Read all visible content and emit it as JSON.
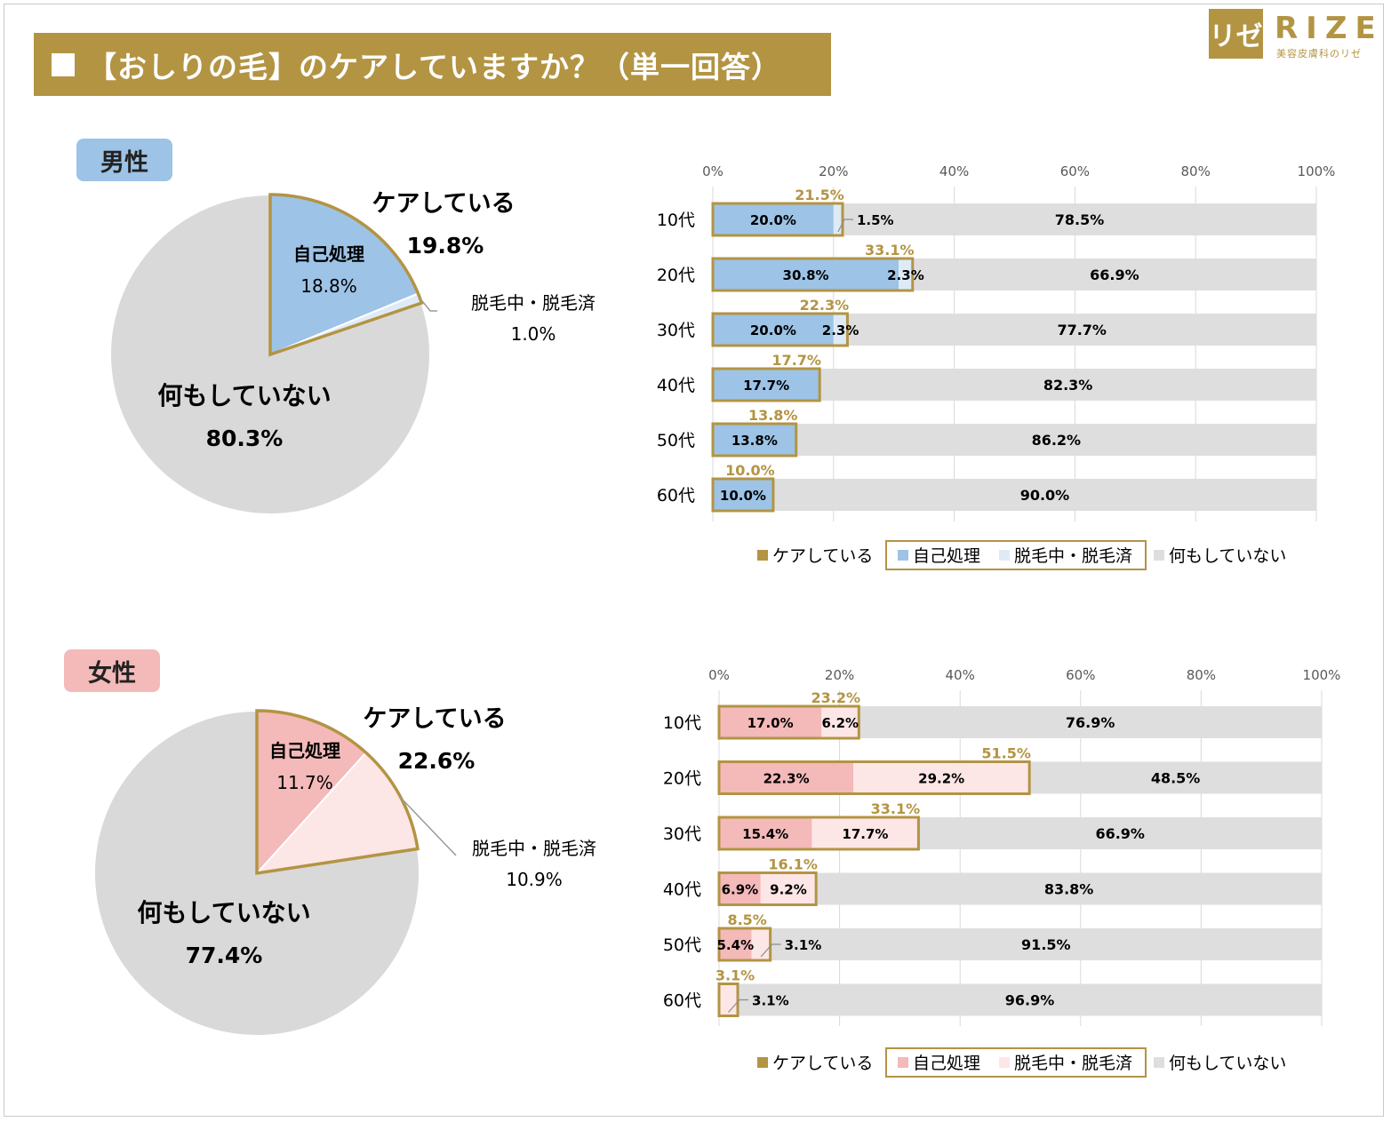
{
  "title": "【おしりの毛】のケアしていますか？（単一回答）",
  "logo": {
    "mark": "リゼ",
    "word": "RIZE",
    "sub": "美容皮膚科のリゼ"
  },
  "colors": {
    "accent": "#b39443",
    "male_self": "#9dc3e6",
    "male_removal": "#deebf7",
    "female_self": "#f4b9b9",
    "female_removal": "#fde6e6",
    "nothing": "#dedede",
    "pie_nothing": "#d9d9d9"
  },
  "chart_data": [
    {
      "type": "pie",
      "gender": "男性",
      "slices": [
        {
          "label": "自己処理",
          "value": 18.8
        },
        {
          "label": "脱毛中・脱毛済",
          "value": 1.0
        },
        {
          "label": "何もしていない",
          "value": 80.3
        }
      ],
      "value_labels": {
        "self": "18.8%",
        "removal": "1.0%",
        "nothing": "80.3%",
        "care": "19.8%"
      },
      "care_label": "ケアしている",
      "care_total": 19.8
    },
    {
      "type": "bar",
      "stacked": true,
      "orientation": "horizontal",
      "gender": "男性",
      "categories": [
        "10代",
        "20代",
        "30代",
        "40代",
        "50代",
        "60代"
      ],
      "series": [
        {
          "name": "自己処理",
          "values": [
            20.0,
            30.8,
            20.0,
            17.7,
            13.8,
            10.0
          ]
        },
        {
          "name": "脱毛中・脱毛済",
          "values": [
            1.5,
            2.3,
            2.3,
            0,
            0,
            0
          ]
        },
        {
          "name": "何もしていない",
          "values": [
            78.5,
            66.9,
            77.7,
            82.3,
            86.2,
            90.0
          ]
        }
      ],
      "care_totals": [
        21.5,
        33.1,
        22.3,
        17.7,
        13.8,
        10.0
      ],
      "ticks": [
        "0%",
        "20%",
        "40%",
        "60%",
        "80%",
        "100%"
      ],
      "xlim": [
        0,
        100
      ],
      "legend": [
        "ケアしている",
        "自己処理",
        "脱毛中・脱毛済",
        "何もしていない"
      ]
    },
    {
      "type": "pie",
      "gender": "女性",
      "slices": [
        {
          "label": "自己処理",
          "value": 11.7
        },
        {
          "label": "脱毛中・脱毛済",
          "value": 10.9
        },
        {
          "label": "何もしていない",
          "value": 77.4
        }
      ],
      "value_labels": {
        "self": "11.7%",
        "removal": "10.9%",
        "nothing": "77.4%",
        "care": "22.6%"
      },
      "care_label": "ケアしている",
      "care_total": 22.6
    },
    {
      "type": "bar",
      "stacked": true,
      "orientation": "horizontal",
      "gender": "女性",
      "categories": [
        "10代",
        "20代",
        "30代",
        "40代",
        "50代",
        "60代"
      ],
      "series": [
        {
          "name": "自己処理",
          "values": [
            17.0,
            22.3,
            15.4,
            6.9,
            5.4,
            0
          ]
        },
        {
          "name": "脱毛中・脱毛済",
          "values": [
            6.2,
            29.2,
            17.7,
            9.2,
            3.1,
            3.1
          ]
        },
        {
          "name": "何もしていない",
          "values": [
            76.9,
            48.5,
            66.9,
            83.8,
            91.5,
            96.9
          ]
        }
      ],
      "care_totals": [
        23.2,
        51.5,
        33.1,
        16.1,
        8.5,
        3.1
      ],
      "ticks": [
        "0%",
        "20%",
        "40%",
        "60%",
        "80%",
        "100%"
      ],
      "xlim": [
        0,
        100
      ],
      "legend": [
        "ケアしている",
        "自己処理",
        "脱毛中・脱毛済",
        "何もしていない"
      ]
    }
  ]
}
